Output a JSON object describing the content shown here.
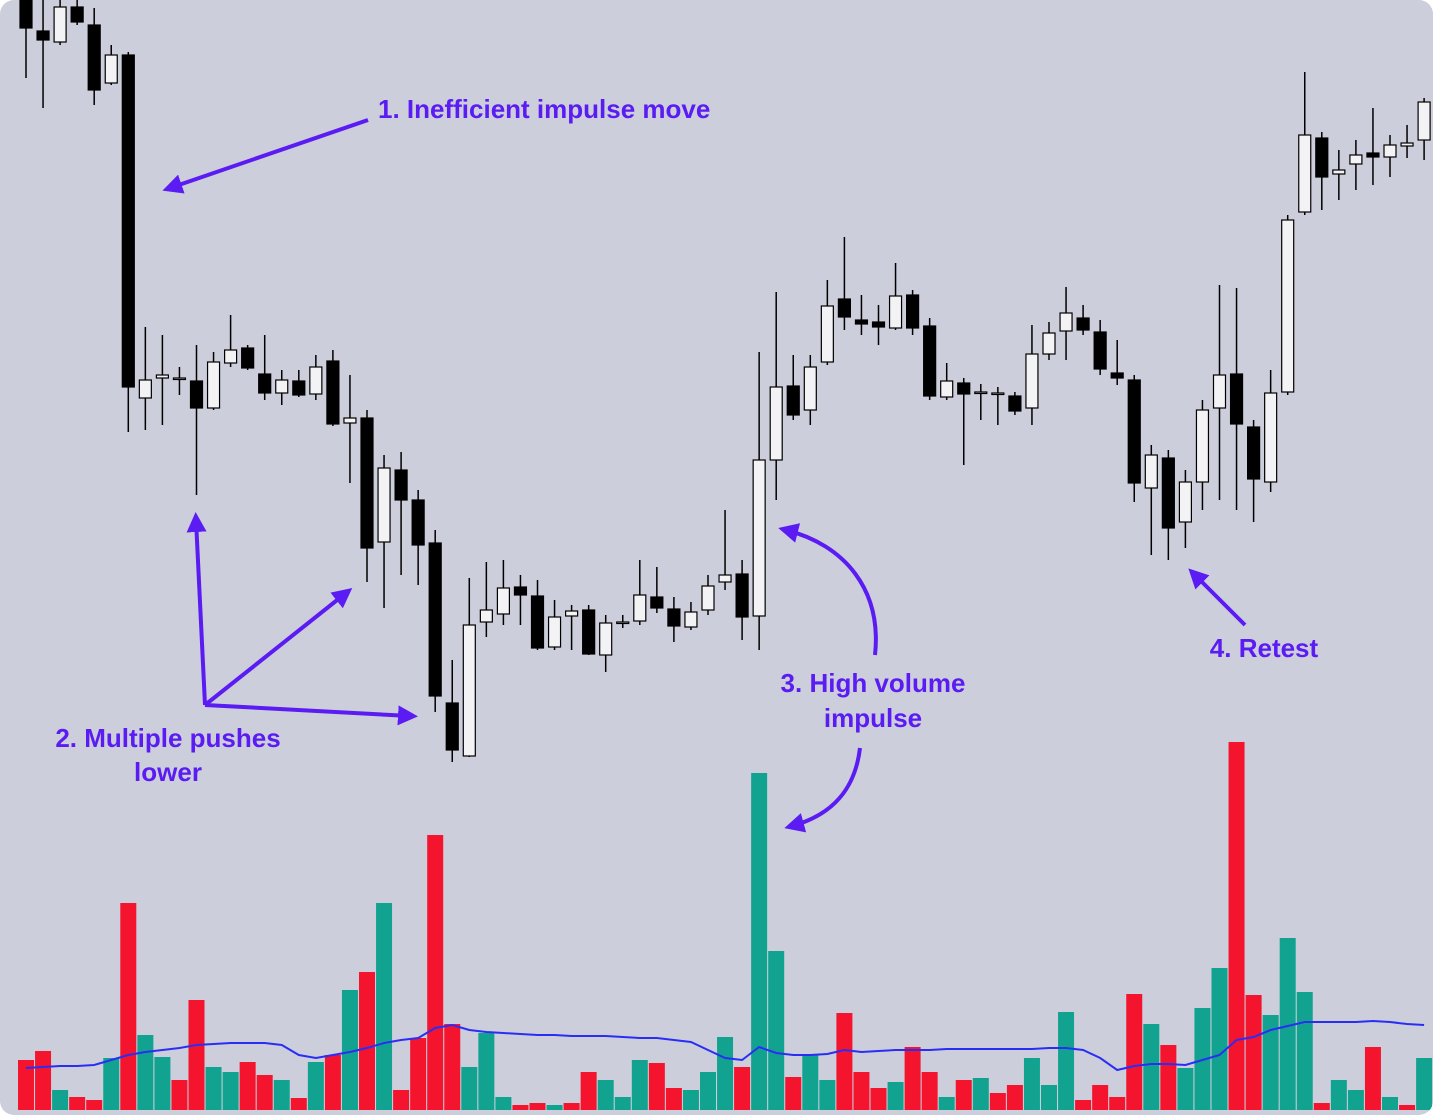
{
  "chart_data": [
    {
      "type": "candlestick",
      "ylim": [
        240,
        1000
      ],
      "up_color": "#f3f3f6",
      "down_color": "#000000",
      "open": [
        1000,
        969,
        958,
        993,
        975,
        917,
        945,
        602,
        622,
        622,
        619,
        592,
        637,
        652,
        626,
        607,
        619,
        606,
        639,
        577,
        582,
        458,
        530,
        500,
        457,
        297,
        244,
        378,
        386,
        413,
        404,
        353,
        384,
        390,
        345,
        378,
        379,
        403,
        391,
        373,
        390,
        418,
        426,
        384,
        540,
        614,
        590,
        638,
        701,
        680,
        678,
        672,
        705,
        674,
        603,
        617,
        608,
        607,
        604,
        592,
        646,
        669,
        682,
        668,
        627,
        620,
        512,
        542,
        478,
        518,
        592,
        626,
        573,
        518,
        608,
        788,
        862,
        826,
        836,
        847,
        843,
        854,
        860
      ],
      "high": [
        1000,
        1000,
        1000,
        1000,
        992,
        955,
        948,
        673,
        665,
        633,
        655,
        648,
        685,
        655,
        665,
        630,
        630,
        645,
        650,
        625,
        590,
        545,
        548,
        510,
        470,
        340,
        422,
        438,
        440,
        425,
        420,
        400,
        395,
        395,
        385,
        385,
        440,
        433,
        403,
        398,
        425,
        490,
        440,
        648,
        708,
        645,
        645,
        720,
        763,
        705,
        695,
        737,
        710,
        682,
        637,
        622,
        616,
        613,
        608,
        675,
        678,
        713,
        695,
        680,
        660,
        625,
        555,
        550,
        530,
        600,
        715,
        712,
        580,
        630,
        785,
        928,
        868,
        850,
        860,
        892,
        865,
        875,
        902
      ],
      "low": [
        922,
        892,
        955,
        975,
        895,
        915,
        568,
        570,
        575,
        605,
        505,
        590,
        633,
        630,
        600,
        595,
        603,
        600,
        574,
        517,
        418,
        392,
        425,
        415,
        288,
        238,
        243,
        363,
        375,
        375,
        350,
        350,
        350,
        345,
        328,
        372,
        375,
        387,
        358,
        370,
        385,
        410,
        360,
        350,
        500,
        580,
        575,
        635,
        670,
        665,
        655,
        670,
        665,
        600,
        600,
        535,
        580,
        575,
        585,
        575,
        640,
        640,
        665,
        625,
        615,
        498,
        445,
        440,
        452,
        490,
        500,
        490,
        478,
        508,
        605,
        785,
        790,
        800,
        810,
        815,
        823,
        842,
        840
      ],
      "close": [
        972,
        960,
        993,
        978,
        910,
        945,
        613,
        620,
        625,
        622,
        592,
        638,
        650,
        632,
        607,
        620,
        605,
        633,
        576,
        582,
        452,
        532,
        500,
        455,
        304,
        250,
        375,
        390,
        412,
        405,
        352,
        383,
        389,
        346,
        377,
        378,
        405,
        392,
        374,
        388,
        414,
        425,
        383,
        540,
        613,
        585,
        633,
        694,
        683,
        676,
        673,
        704,
        672,
        604,
        619,
        606,
        608,
        607,
        589,
        646,
        667,
        687,
        670,
        631,
        622,
        517,
        545,
        472,
        518,
        590,
        625,
        576,
        521,
        607,
        780,
        865,
        823,
        830,
        845,
        843,
        855,
        857,
        898
      ],
      "annotations": [
        [
          "1. Inefficient impulse move"
        ],
        [
          "2. Multiple pushes",
          "lower"
        ],
        [
          "3. High volume",
          "impulse"
        ],
        [
          "4. Retest"
        ]
      ]
    },
    {
      "type": "bar",
      "ylim": [
        0,
        400
      ],
      "values": [
        50,
        59,
        20,
        13,
        10,
        52,
        207,
        75,
        53,
        30,
        110,
        43,
        38,
        48,
        35,
        30,
        12,
        48,
        55,
        120,
        138,
        207,
        20,
        72,
        275,
        86,
        43,
        77,
        13,
        5,
        7,
        5,
        7,
        38,
        30,
        13,
        50,
        47,
        22,
        20,
        38,
        73,
        43,
        337,
        159,
        33,
        55,
        30,
        97,
        38,
        22,
        28,
        63,
        38,
        13,
        30,
        32,
        17,
        25,
        52,
        25,
        98,
        10,
        25,
        13,
        116,
        86,
        65,
        42,
        102,
        142,
        368,
        115,
        95,
        172,
        118,
        7,
        30,
        20,
        63,
        13,
        5,
        52
      ],
      "colors": [
        "#f4142e",
        "#f4142e",
        "#11a38f",
        "#f4142e",
        "#f4142e",
        "#11a38f",
        "#f4142e",
        "#11a38f",
        "#11a38f",
        "#f4142e",
        "#f4142e",
        "#11a38f",
        "#11a38f",
        "#f4142e",
        "#f4142e",
        "#11a38f",
        "#f4142e",
        "#11a38f",
        "#f4142e",
        "#11a38f",
        "#f4142e",
        "#11a38f",
        "#f4142e",
        "#f4142e",
        "#f4142e",
        "#f4142e",
        "#11a38f",
        "#11a38f",
        "#11a38f",
        "#f4142e",
        "#f4142e",
        "#11a38f",
        "#f4142e",
        "#f4142e",
        "#11a38f",
        "#11a38f",
        "#11a38f",
        "#f4142e",
        "#f4142e",
        "#11a38f",
        "#11a38f",
        "#11a38f",
        "#f4142e",
        "#11a38f",
        "#11a38f",
        "#f4142e",
        "#11a38f",
        "#11a38f",
        "#f4142e",
        "#f4142e",
        "#f4142e",
        "#11a38f",
        "#f4142e",
        "#f4142e",
        "#11a38f",
        "#f4142e",
        "#11a38f",
        "#f4142e",
        "#f4142e",
        "#11a38f",
        "#11a38f",
        "#11a38f",
        "#f4142e",
        "#f4142e",
        "#f4142e",
        "#f4142e",
        "#11a38f",
        "#f4142e",
        "#11a38f",
        "#11a38f",
        "#11a38f",
        "#f4142e",
        "#f4142e",
        "#11a38f",
        "#11a38f",
        "#11a38f",
        "#f4142e",
        "#11a38f",
        "#11a38f",
        "#f4142e",
        "#11a38f",
        "#f4142e",
        "#11a38f"
      ],
      "line": {
        "color": "#2a2ef5",
        "values": [
          42,
          43,
          44,
          44,
          45,
          50,
          55,
          58,
          60,
          62,
          65,
          66,
          67,
          67,
          67,
          65,
          55,
          52,
          55,
          58,
          62,
          67,
          70,
          72,
          82,
          85,
          80,
          78,
          77,
          76,
          75,
          75,
          74,
          74,
          74,
          73,
          72,
          72,
          70,
          68,
          60,
          52,
          50,
          63,
          57,
          55,
          55,
          56,
          60,
          58,
          59,
          60,
          60,
          60,
          61,
          61,
          61,
          61,
          61,
          61,
          62,
          62,
          60,
          52,
          40,
          44,
          46,
          46,
          45,
          50,
          55,
          70,
          73,
          80,
          84,
          88,
          88,
          88,
          88,
          89,
          88,
          86,
          85
        ]
      }
    }
  ]
}
